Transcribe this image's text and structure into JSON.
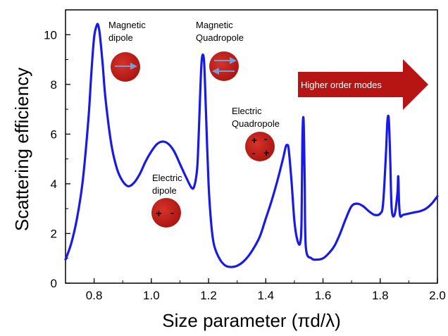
{
  "chart_data": {
    "type": "line",
    "title": "",
    "xlabel": "Size parameter (πd/λ)",
    "ylabel": "Scattering efficiency",
    "xlim": [
      0.7,
      2.0
    ],
    "ylim": [
      0,
      11
    ],
    "xticks": [
      "0.8",
      "1.0",
      "1.2",
      "1.4",
      "1.6",
      "1.8",
      "2.0"
    ],
    "xtick_values": [
      0.8,
      1.0,
      1.2,
      1.4,
      1.6,
      1.8,
      2.0
    ],
    "yticks": [
      "0",
      "2",
      "4",
      "6",
      "8",
      "10"
    ],
    "ytick_values": [
      0,
      2,
      4,
      6,
      8,
      10
    ],
    "grid": false,
    "line_color": "#1a1ae6",
    "series": [
      {
        "x": [
          0.7,
          0.72,
          0.74,
          0.76,
          0.78,
          0.79,
          0.8,
          0.81,
          0.815,
          0.82,
          0.83,
          0.84,
          0.86,
          0.88,
          0.9,
          0.92,
          0.94,
          0.96,
          0.98,
          1.0,
          1.02,
          1.04,
          1.06,
          1.08,
          1.1,
          1.12,
          1.14,
          1.15,
          1.16,
          1.165,
          1.17,
          1.175,
          1.18,
          1.185,
          1.19,
          1.2,
          1.21,
          1.22,
          1.24,
          1.26,
          1.28,
          1.3,
          1.32,
          1.34,
          1.36,
          1.38,
          1.4,
          1.42,
          1.44,
          1.46,
          1.47,
          1.475,
          1.48,
          1.49,
          1.5,
          1.51,
          1.52,
          1.525,
          1.528,
          1.532,
          1.536,
          1.54,
          1.56,
          1.58,
          1.6,
          1.62,
          1.64,
          1.66,
          1.68,
          1.7,
          1.72,
          1.74,
          1.76,
          1.78,
          1.8,
          1.81,
          1.82,
          1.825,
          1.83,
          1.835,
          1.84,
          1.85,
          1.86,
          1.863,
          1.866,
          1.87,
          1.88,
          1.9,
          1.92,
          1.94,
          1.96,
          1.98,
          2.0
        ],
        "y": [
          0.95,
          1.6,
          2.6,
          4.1,
          6.6,
          8.4,
          9.9,
          10.4,
          10.35,
          10.0,
          8.8,
          7.4,
          5.6,
          4.6,
          4.1,
          3.9,
          4.05,
          4.4,
          4.9,
          5.3,
          5.6,
          5.7,
          5.6,
          5.3,
          4.8,
          4.3,
          3.85,
          3.9,
          4.6,
          5.8,
          7.4,
          8.8,
          9.2,
          8.8,
          7.2,
          4.0,
          2.3,
          1.5,
          0.95,
          0.7,
          0.65,
          0.7,
          0.85,
          1.1,
          1.45,
          1.9,
          2.6,
          3.3,
          4.1,
          5.0,
          5.5,
          5.55,
          5.4,
          4.1,
          2.5,
          1.75,
          1.6,
          2.5,
          5.8,
          6.6,
          4.2,
          1.45,
          1.0,
          0.95,
          1.0,
          1.2,
          1.5,
          2.0,
          2.6,
          3.1,
          3.2,
          3.1,
          2.9,
          2.75,
          2.8,
          3.2,
          5.2,
          6.5,
          6.6,
          5.0,
          3.0,
          2.75,
          3.6,
          4.3,
          3.2,
          2.7,
          2.75,
          2.8,
          2.85,
          2.9,
          3.0,
          3.2,
          3.5
        ]
      }
    ]
  },
  "annotations": {
    "magnetic_dipole": {
      "line1": "Magnetic",
      "line2": "dipole"
    },
    "magnetic_quadrupole": {
      "line1": "Magnetic",
      "line2": "Quadropole"
    },
    "electric_quadrupole": {
      "line1": "Electric",
      "line2": "Quadropole"
    },
    "electric_dipole": {
      "line1": "Electric",
      "line2": "dipole"
    },
    "higher_order": "Higher order modes",
    "sphere_color": "#c0201a",
    "arrow_color": "#b71414",
    "field_arrow_color": "#7a9ad0"
  }
}
